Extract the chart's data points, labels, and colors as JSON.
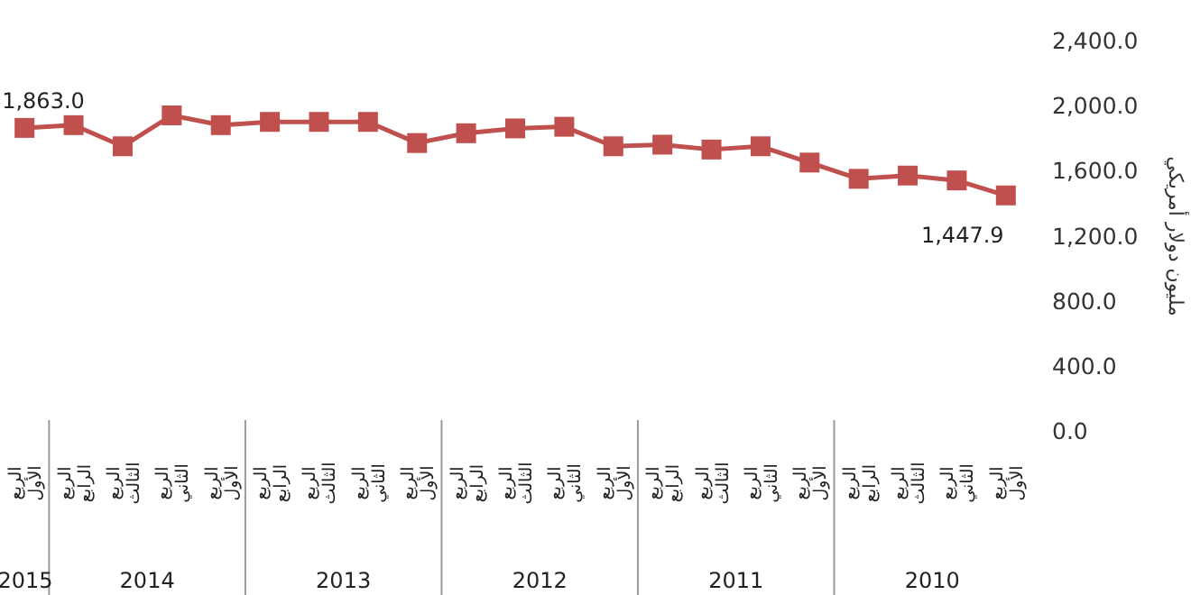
{
  "chart_data": {
    "type": "line",
    "categories": [
      "الربع الأول",
      "الربع الرابع",
      "الربع الثالث",
      "الربع الثاني",
      "الربع الأول",
      "الربع الرابع",
      "الربع الثالث",
      "الربع الثاني",
      "الربع الأول",
      "الربع الرابع",
      "الربع الثالث",
      "الربع الثاني",
      "الربع الأول",
      "الربع الرابع",
      "الربع الثالث",
      "الربع الثاني",
      "الربع الأول",
      "الربع الرابع",
      "الربع الثالث",
      "الربع الثاني",
      "الربع الأول"
    ],
    "series": [
      {
        "color": "#c0504d",
        "values": [
          1863.0,
          1880,
          1750,
          1940,
          1880,
          1900,
          1900,
          1900,
          1770,
          1830,
          1860,
          1870,
          1750,
          1760,
          1730,
          1750,
          1650,
          1550,
          1570,
          1540,
          1447.9
        ],
        "value_labels": [
          "1,863.0",
          null,
          null,
          null,
          null,
          null,
          null,
          null,
          null,
          null,
          null,
          null,
          null,
          null,
          null,
          null,
          null,
          null,
          null,
          null,
          "1,447.9"
        ]
      }
    ],
    "ylabel": "مليون دولار أمريكي",
    "ylim": [
      0,
      2400
    ],
    "yticks": [
      {
        "value": 0,
        "label": "0.0"
      },
      {
        "value": 400,
        "label": "400.0"
      },
      {
        "value": 800,
        "label": "800.0"
      },
      {
        "value": 1200,
        "label": "1,200.0"
      },
      {
        "value": 1600,
        "label": "1,600.0"
      },
      {
        "value": 2000,
        "label": "2,000.0"
      },
      {
        "value": 2400,
        "label": "2,400.0"
      }
    ],
    "annotations": [
      "2015",
      "2014",
      "2013",
      "2012",
      "2011",
      "2010"
    ],
    "marker": "square",
    "line_style": "solid",
    "grid": false
  }
}
